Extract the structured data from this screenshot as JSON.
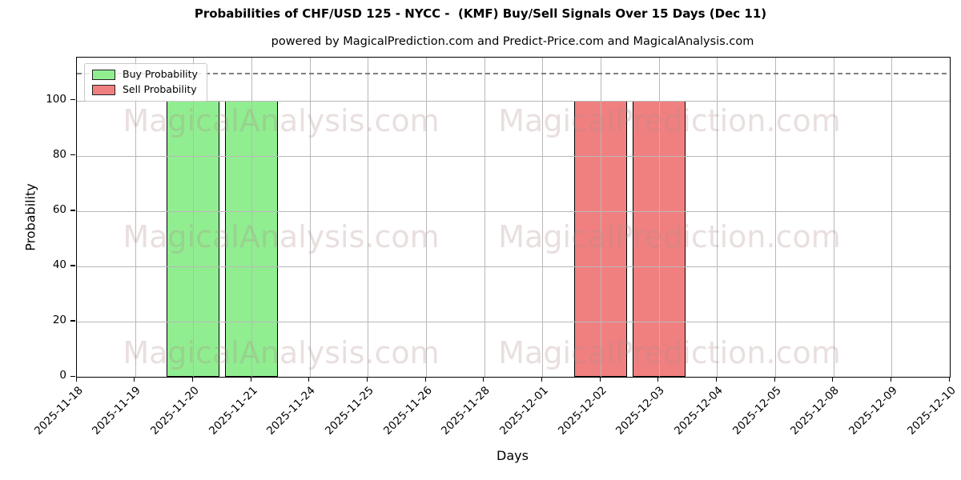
{
  "title": "Probabilities of CHF/USD 125 - NYCC -  (KMF) Buy/Sell Signals Over 15 Days (Dec 11)",
  "subtitle": "powered by MagicalPrediction.com and Predict-Price.com and MagicalAnalysis.com",
  "watermarks": {
    "left_text": "MagicalAnalysis.com",
    "right_text": "MagicalPrediction.com"
  },
  "legend": {
    "items": [
      {
        "label": "Buy Probability",
        "color": "#90EE90"
      },
      {
        "label": "Sell Probability",
        "color": "#F08080"
      }
    ]
  },
  "chart_data": {
    "type": "bar",
    "title": "Probabilities of CHF/USD 125 - NYCC -  (KMF) Buy/Sell Signals Over 15 Days (Dec 11)",
    "xlabel": "Days",
    "ylabel": "Probability",
    "ylim": [
      0,
      115.5
    ],
    "yticks": [
      0,
      20,
      40,
      60,
      80,
      100
    ],
    "grid": true,
    "legend_position": "upper left",
    "dashed_line_y": 110,
    "categories": [
      "2025-11-18",
      "2025-11-19",
      "2025-11-20",
      "2025-11-21",
      "2025-11-24",
      "2025-11-25",
      "2025-11-26",
      "2025-11-28",
      "2025-12-01",
      "2025-12-02",
      "2025-12-03",
      "2025-12-04",
      "2025-12-05",
      "2025-12-08",
      "2025-12-09",
      "2025-12-10"
    ],
    "series": [
      {
        "name": "Buy Probability",
        "color": "#90EE90",
        "edge_color": "#000000",
        "values": [
          null,
          null,
          100,
          100,
          null,
          null,
          null,
          null,
          null,
          null,
          null,
          null,
          null,
          null,
          null,
          null
        ]
      },
      {
        "name": "Sell Probability",
        "color": "#F08080",
        "edge_color": "#000000",
        "values": [
          null,
          null,
          null,
          null,
          null,
          null,
          null,
          null,
          null,
          100,
          100,
          null,
          null,
          null,
          null,
          null
        ]
      }
    ]
  }
}
